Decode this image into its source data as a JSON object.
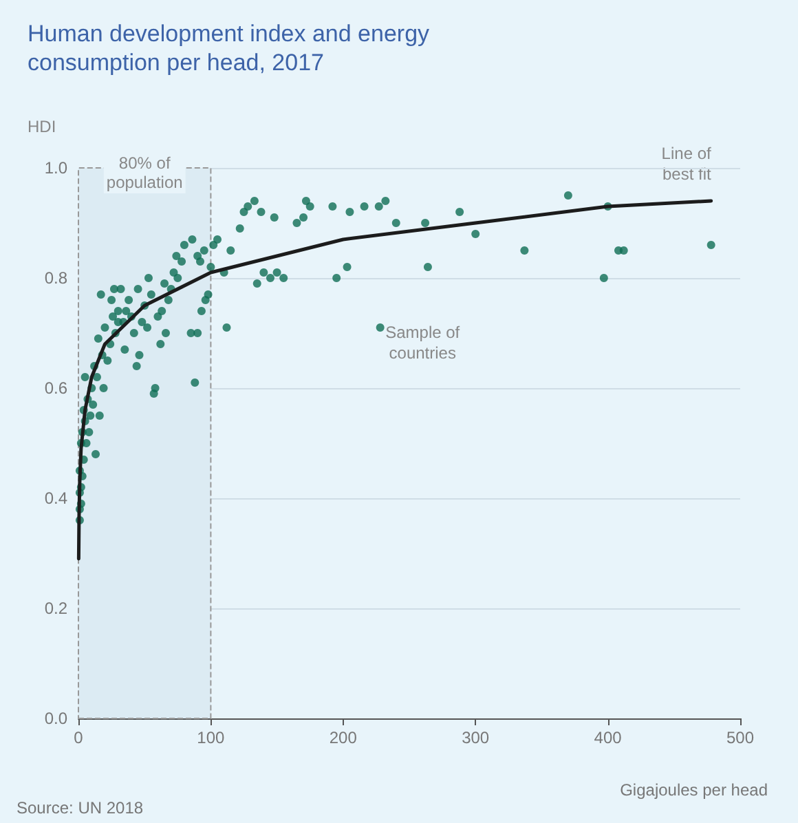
{
  "chart_data": {
    "type": "scatter",
    "title": "Human development index and energy consumption per head, 2017",
    "xlabel": "Gigajoules per head",
    "ylabel": "HDI",
    "xlim": [
      0,
      500
    ],
    "xticks": [
      0,
      100,
      200,
      300,
      400,
      500
    ],
    "ylim": [
      0,
      1
    ],
    "yticks": [
      {
        "value": 0,
        "label": "0.0"
      },
      {
        "value": 0.2,
        "label": "0.2"
      },
      {
        "value": 0.4,
        "label": "0.4"
      },
      {
        "value": 0.6,
        "label": "0.6"
      },
      {
        "value": 0.8,
        "label": "0.8"
      },
      {
        "value": 1,
        "label": "1.0"
      }
    ],
    "grid": "y",
    "legend": false,
    "marker": "circle",
    "series": [
      {
        "name": "Sample of countries",
        "color": "#0f6e55",
        "x": [
          478,
          412,
          408,
          397,
          400,
          370,
          337,
          300,
          288,
          264,
          262,
          240,
          232,
          227,
          228,
          216,
          205,
          203,
          195,
          192,
          175,
          172,
          170,
          165,
          155,
          150,
          148,
          145,
          140,
          138,
          135,
          133,
          128,
          125,
          122,
          115,
          112,
          110,
          105,
          102,
          100,
          98,
          96,
          93,
          90,
          88,
          85,
          95,
          92,
          80,
          78,
          75,
          72,
          70,
          68,
          65,
          63,
          60,
          58,
          57,
          55,
          52,
          50,
          48,
          46,
          45,
          42,
          40,
          38,
          36,
          34,
          32,
          30,
          28,
          26,
          24,
          22,
          20,
          18,
          17,
          15,
          14,
          13,
          12,
          11,
          10,
          9,
          8,
          7,
          6,
          5,
          5,
          4,
          4,
          3,
          3,
          2,
          2,
          2,
          1,
          1,
          1,
          1,
          25,
          35,
          44,
          62,
          30,
          19,
          27,
          53,
          66,
          74,
          86,
          90,
          16
        ],
        "values": [
          0.86,
          0.85,
          0.85,
          0.8,
          0.93,
          0.95,
          0.85,
          0.88,
          0.92,
          0.82,
          0.9,
          0.9,
          0.94,
          0.93,
          0.71,
          0.93,
          0.92,
          0.82,
          0.8,
          0.93,
          0.93,
          0.94,
          0.91,
          0.9,
          0.8,
          0.81,
          0.91,
          0.8,
          0.81,
          0.92,
          0.79,
          0.94,
          0.93,
          0.92,
          0.89,
          0.85,
          0.71,
          0.81,
          0.87,
          0.86,
          0.82,
          0.77,
          0.76,
          0.74,
          0.7,
          0.61,
          0.7,
          0.85,
          0.83,
          0.86,
          0.83,
          0.8,
          0.81,
          0.78,
          0.76,
          0.79,
          0.74,
          0.73,
          0.6,
          0.59,
          0.77,
          0.71,
          0.75,
          0.72,
          0.66,
          0.78,
          0.7,
          0.73,
          0.76,
          0.74,
          0.72,
          0.78,
          0.74,
          0.7,
          0.73,
          0.68,
          0.65,
          0.71,
          0.66,
          0.77,
          0.69,
          0.62,
          0.48,
          0.64,
          0.57,
          0.6,
          0.55,
          0.52,
          0.58,
          0.5,
          0.62,
          0.54,
          0.47,
          0.56,
          0.44,
          0.52,
          0.42,
          0.5,
          0.39,
          0.36,
          0.45,
          0.41,
          0.38,
          0.76,
          0.67,
          0.64,
          0.68,
          0.72,
          0.6,
          0.78,
          0.8,
          0.7,
          0.84,
          0.87,
          0.84,
          0.55
        ]
      },
      {
        "name": "Line of best fit",
        "type": "line",
        "color": "#1c1c1c",
        "marker": "none",
        "x": [
          0.2,
          0.5,
          1,
          2,
          5,
          10,
          20,
          50,
          100,
          200,
          300,
          400,
          478
        ],
        "values": [
          0.29,
          0.37,
          0.43,
          0.49,
          0.56,
          0.62,
          0.68,
          0.75,
          0.81,
          0.87,
          0.9,
          0.93,
          0.94
        ]
      }
    ],
    "bands": [
      {
        "axis": "x",
        "from": 0,
        "to": 100,
        "label": "80% of\npopulation",
        "color": "#dcebf3"
      }
    ],
    "annotations": [
      "Source: UN 2018"
    ]
  }
}
